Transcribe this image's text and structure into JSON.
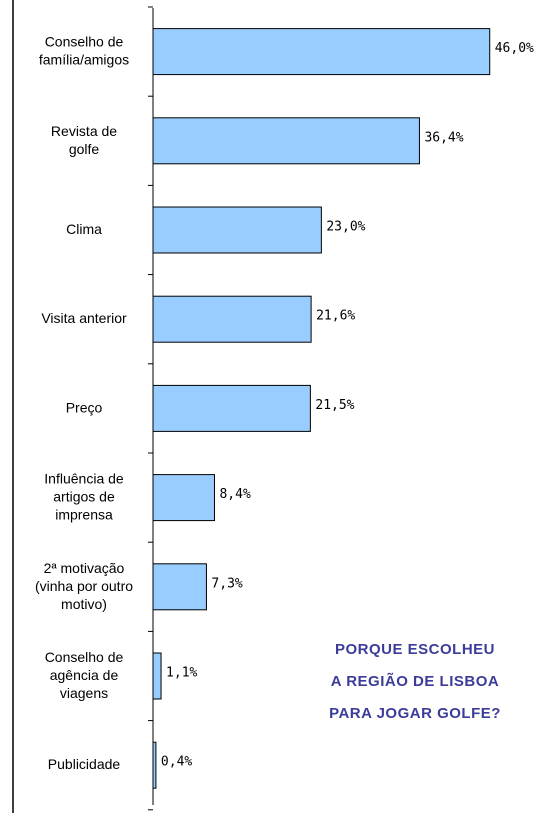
{
  "chart_data": {
    "type": "barh",
    "categories": [
      "Conselho de\nfamília/amigos",
      "Revista de\ngolfe",
      "Clima",
      "Visita anterior",
      "Preço",
      "Influência de\nartigos de\nimprensa",
      "2ª motivação\n(vinha por outro\nmotivo)",
      "Conselho de\nagência de\nviagens",
      "Publicidade"
    ],
    "values": [
      46.0,
      36.4,
      23.0,
      21.6,
      21.5,
      8.4,
      7.3,
      1.1,
      0.4
    ],
    "value_labels": [
      "46,0%",
      "36,4%",
      "23,0%",
      "21,6%",
      "21,5%",
      "8,4%",
      "7,3%",
      "1,1%",
      "0,4%"
    ],
    "color": "#99ccff",
    "xlim": [
      0,
      50
    ],
    "annotation": [
      "PORQUE ESCOLHEU",
      "A REGIÃO DE LISBOA",
      "PARA JOGAR GOLFE?"
    ],
    "annotation_color": "#3c3c9a"
  }
}
